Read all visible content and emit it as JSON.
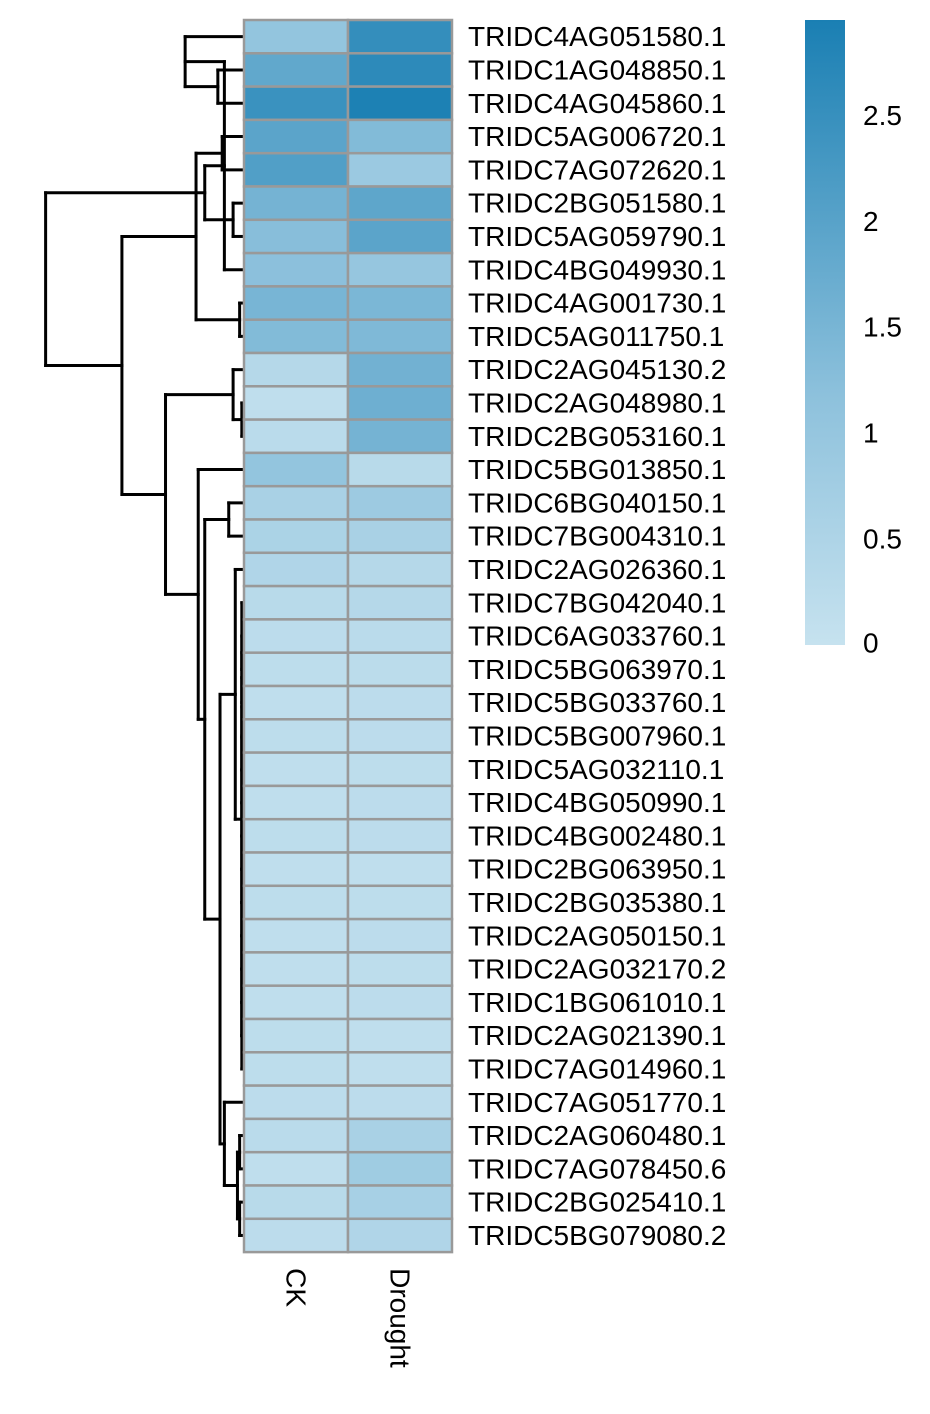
{
  "chart_data": {
    "type": "heatmap",
    "title": "",
    "columns": [
      "CK",
      "Drought"
    ],
    "rows": [
      "TRIDC4AG051580.1",
      "TRIDC1AG048850.1",
      "TRIDC4AG045860.1",
      "TRIDC5AG006720.1",
      "TRIDC7AG072620.1",
      "TRIDC2BG051580.1",
      "TRIDC5AG059790.1",
      "TRIDC4BG049930.1",
      "TRIDC4AG001730.1",
      "TRIDC5AG011750.1",
      "TRIDC2AG045130.2",
      "TRIDC2AG048980.1",
      "TRIDC2BG053160.1",
      "TRIDC5BG013850.1",
      "TRIDC6BG040150.1",
      "TRIDC7BG004310.1",
      "TRIDC2AG026360.1",
      "TRIDC7BG042040.1",
      "TRIDC6AG033760.1",
      "TRIDC5BG063970.1",
      "TRIDC5BG033760.1",
      "TRIDC5BG007960.1",
      "TRIDC5AG032110.1",
      "TRIDC4BG050990.1",
      "TRIDC4BG002480.1",
      "TRIDC2BG063950.1",
      "TRIDC2BG035380.1",
      "TRIDC2AG050150.1",
      "TRIDC2AG032170.2",
      "TRIDC1BG061010.1",
      "TRIDC2AG021390.1",
      "TRIDC7AG014960.1",
      "TRIDC7AG051770.1",
      "TRIDC2AG060480.1",
      "TRIDC7AG078450.6",
      "TRIDC2BG025410.1",
      "TRIDC5BG079080.2"
    ],
    "values": [
      [
        1.05,
        2.55
      ],
      [
        1.85,
        2.65
      ],
      [
        2.45,
        2.9
      ],
      [
        1.95,
        1.35
      ],
      [
        2.1,
        0.9
      ],
      [
        1.55,
        1.9
      ],
      [
        1.25,
        1.95
      ],
      [
        1.2,
        1.0
      ],
      [
        1.5,
        1.45
      ],
      [
        1.35,
        1.4
      ],
      [
        0.35,
        1.6
      ],
      [
        0.15,
        1.65
      ],
      [
        0.25,
        1.55
      ],
      [
        1.05,
        0.3
      ],
      [
        0.6,
        0.85
      ],
      [
        0.55,
        0.6
      ],
      [
        0.45,
        0.35
      ],
      [
        0.3,
        0.35
      ],
      [
        0.2,
        0.25
      ],
      [
        0.18,
        0.22
      ],
      [
        0.15,
        0.2
      ],
      [
        0.18,
        0.2
      ],
      [
        0.15,
        0.18
      ],
      [
        0.15,
        0.2
      ],
      [
        0.18,
        0.2
      ],
      [
        0.15,
        0.15
      ],
      [
        0.18,
        0.18
      ],
      [
        0.15,
        0.2
      ],
      [
        0.15,
        0.18
      ],
      [
        0.15,
        0.2
      ],
      [
        0.18,
        0.15
      ],
      [
        0.18,
        0.15
      ],
      [
        0.2,
        0.2
      ],
      [
        0.25,
        0.6
      ],
      [
        0.15,
        0.8
      ],
      [
        0.3,
        0.65
      ],
      [
        0.2,
        0.45
      ]
    ],
    "color_scale": {
      "min": 0,
      "max": 2.95,
      "low_color": "#c6e2ef",
      "mid_color": "#8dc1dc",
      "high_color": "#1a7fb3"
    },
    "legend": {
      "ticks": [
        0,
        0.5,
        1,
        1.5,
        2,
        2.5
      ],
      "tick_labels": [
        "0",
        "0.5",
        "1",
        "1.5",
        "2",
        "2.5"
      ],
      "placement": "top-right"
    },
    "row_dendrogram": [
      {
        "a": [
          3,
          4
        ],
        "h": 0.1
      },
      {
        "a": [
          5,
          6
        ],
        "h": 0.05
      },
      {
        "a": [
          8,
          9
        ],
        "h": 0.02
      },
      {
        "a": [
          1,
          2
        ],
        "h": 0.12
      },
      {
        "a": [
          0,
          1
        ],
        "h": 0.27
      },
      {
        "a": [
          7,
          2
        ],
        "h": 0.09
      },
      {
        "a": [
          6,
          7
        ],
        "h": 0.18
      },
      {
        "a": [
          4,
          8
        ],
        "h": 0.22
      },
      {
        "a": [
          11,
          12
        ],
        "h": 0.01
      },
      {
        "a": [
          10,
          11
        ],
        "h": 0.05
      },
      {
        "a": [
          14,
          15
        ],
        "h": 0.07
      },
      {
        "a": [
          35,
          36
        ],
        "h": 0.02
      },
      {
        "a": [
          33,
          34
        ],
        "h": 0.02
      },
      {
        "a": [
          34,
          35
        ],
        "h": 0.03
      },
      {
        "a": [
          32,
          33
        ],
        "h": 0.09
      },
      {
        "a": [
          18,
          19
        ],
        "h": 0.01
      },
      {
        "a": [
          19,
          20
        ],
        "h": 0.01
      },
      {
        "a": [
          20,
          21
        ],
        "h": 0.01
      },
      {
        "a": [
          21,
          22
        ],
        "h": 0.01
      },
      {
        "a": [
          22,
          23
        ],
        "h": 0.01
      },
      {
        "a": [
          23,
          24
        ],
        "h": 0.01
      },
      {
        "a": [
          24,
          25
        ],
        "h": 0.01
      },
      {
        "a": [
          25,
          26
        ],
        "h": 0.01
      },
      {
        "a": [
          26,
          27
        ],
        "h": 0.01
      },
      {
        "a": [
          27,
          28
        ],
        "h": 0.01
      },
      {
        "a": [
          28,
          29
        ],
        "h": 0.01
      },
      {
        "a": [
          29,
          30
        ],
        "h": 0.01
      },
      {
        "a": [
          30,
          31
        ],
        "h": 0.01
      },
      {
        "a": [
          17,
          18
        ],
        "h": 0.01
      },
      {
        "a": [
          16,
          17
        ],
        "h": 0.04
      },
      {
        "a": [
          16,
          32
        ],
        "h": 0.11
      },
      {
        "a": [
          14,
          16
        ],
        "h": 0.18
      },
      {
        "a": [
          13,
          14
        ],
        "h": 0.21
      },
      {
        "a": [
          10,
          13
        ],
        "h": 0.36
      },
      {
        "a": [
          4,
          10
        ],
        "h": 0.56
      },
      {
        "a": [
          0,
          4
        ],
        "h": 0.91
      }
    ]
  }
}
